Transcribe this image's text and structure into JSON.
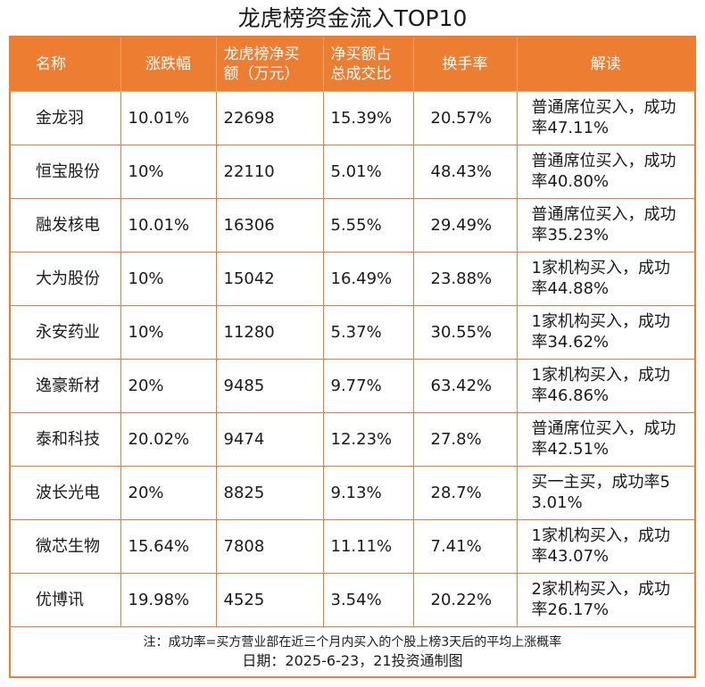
{
  "title": "龙虎榜资金流入TOP10",
  "colors": {
    "accent": "#ed7d31",
    "header_text": "#ffffff",
    "body_text": "#1a1a1a"
  },
  "table": {
    "headers": {
      "name": "名称",
      "change": "涨跌幅",
      "net_buy_line1": "龙虎榜净买",
      "net_buy_line2": "额（万元）",
      "ratio_line1": "净买额占",
      "ratio_line2": "总成交比",
      "turnover": "换手率",
      "reading": "解读"
    },
    "rows": [
      {
        "name": "金龙羽",
        "change": "10.01%",
        "net_buy": "22698",
        "ratio": "15.39%",
        "turnover": "20.57%",
        "reading_line1": "普通席位买入，成功",
        "reading_line2": "率47.11%"
      },
      {
        "name": "恒宝股份",
        "change": "10%",
        "net_buy": "22110",
        "ratio": "5.01%",
        "turnover": "48.43%",
        "reading_line1": "普通席位买入，成功",
        "reading_line2": "率40.80%"
      },
      {
        "name": "融发核电",
        "change": "10.01%",
        "net_buy": "16306",
        "ratio": "5.55%",
        "turnover": "29.49%",
        "reading_line1": "普通席位买入，成功",
        "reading_line2": "率35.23%"
      },
      {
        "name": "大为股份",
        "change": "10%",
        "net_buy": "15042",
        "ratio": "16.49%",
        "turnover": "23.88%",
        "reading_line1": "1家机构买入，成功",
        "reading_line2": "率44.88%"
      },
      {
        "name": "永安药业",
        "change": "10%",
        "net_buy": "11280",
        "ratio": "5.37%",
        "turnover": "30.55%",
        "reading_line1": "1家机构买入，成功",
        "reading_line2": "率34.62%"
      },
      {
        "name": "逸豪新材",
        "change": "20%",
        "net_buy": "9485",
        "ratio": "9.77%",
        "turnover": "63.42%",
        "reading_line1": "1家机构买入，成功",
        "reading_line2": "率46.86%"
      },
      {
        "name": "泰和科技",
        "change": "20.02%",
        "net_buy": "9474",
        "ratio": "12.23%",
        "turnover": "27.8%",
        "reading_line1": "普通席位买入，成功",
        "reading_line2": "率42.51%"
      },
      {
        "name": "波长光电",
        "change": "20%",
        "net_buy": "8825",
        "ratio": "9.13%",
        "turnover": "28.7%",
        "reading_line1": "买一主买，成功率5",
        "reading_line2": "3.01%"
      },
      {
        "name": "微芯生物",
        "change": "15.64%",
        "net_buy": "7808",
        "ratio": "11.11%",
        "turnover": "7.41%",
        "reading_line1": "1家机构买入，成功",
        "reading_line2": "率43.07%"
      },
      {
        "name": "优博讯",
        "change": "19.98%",
        "net_buy": "4525",
        "ratio": "3.54%",
        "turnover": "20.22%",
        "reading_line1": "2家机构买入，成功",
        "reading_line2": "率26.17%"
      }
    ]
  },
  "footer": {
    "note": "注：成功率=买方营业部在近三个月内买入的个股上榜3天后的平均上涨概率",
    "credit": "日期：2025-6-23，21投资通制图"
  }
}
